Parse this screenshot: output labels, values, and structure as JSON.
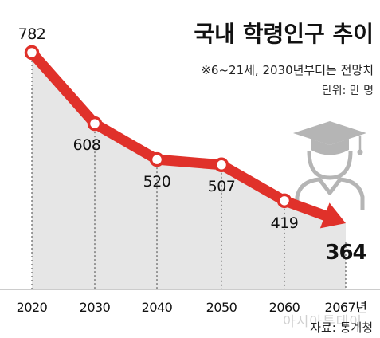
{
  "chart_data": {
    "type": "line",
    "title": "국내 학령인구 추이",
    "subtitle": "※6~21세, 2030년부터는 전망치",
    "unit": "단위: 만 명",
    "source": "자료: 통계청",
    "watermark": "아시아투데이",
    "x": [
      "2020",
      "2030",
      "2040",
      "2050",
      "2060",
      "2067년"
    ],
    "values": [
      782,
      608,
      520,
      507,
      419,
      364
    ],
    "labels": [
      "782",
      "608",
      "520",
      "507",
      "419",
      "364"
    ],
    "ylim": [
      300,
      800
    ],
    "colors": {
      "line": "#e0312a",
      "area": "#e6e6e6",
      "icon": "#b5b5b5"
    },
    "icon": "graduate-icon"
  }
}
